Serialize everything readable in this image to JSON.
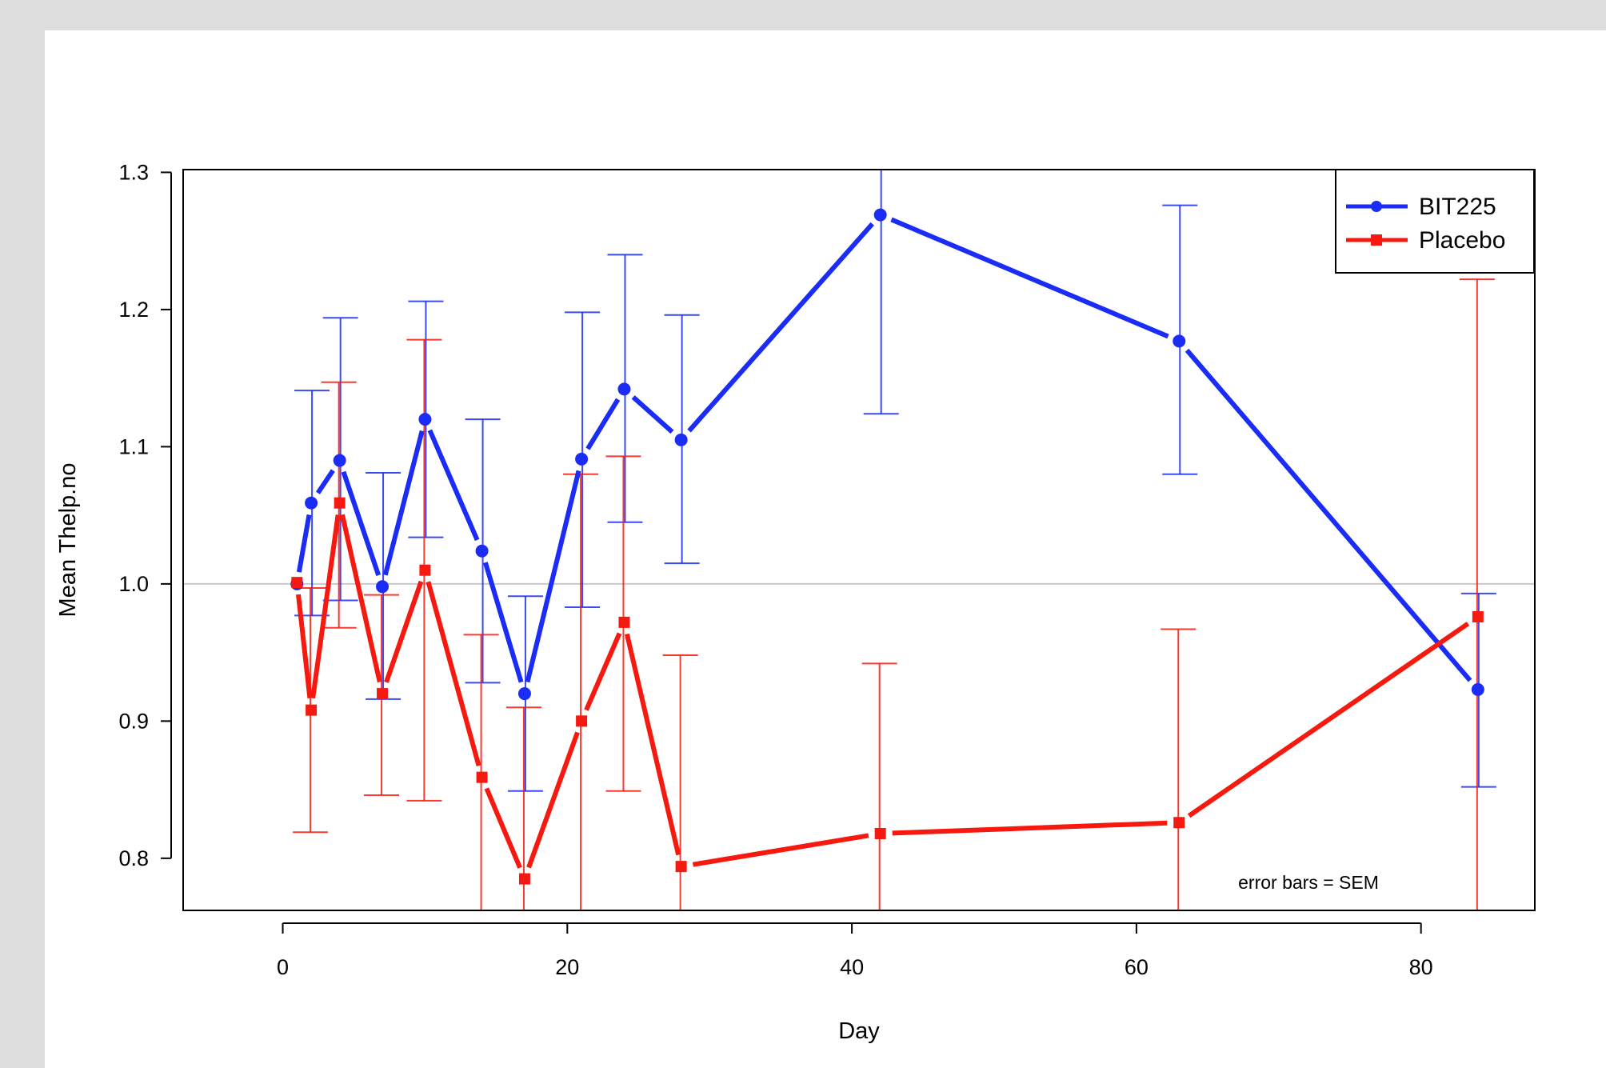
{
  "chart_data": {
    "type": "line",
    "xlabel": "Day",
    "ylabel": "Mean Thelp.no",
    "xlim": [
      -7,
      88
    ],
    "ylim": [
      0.762,
      1.302
    ],
    "xticks": [
      0,
      20,
      40,
      60,
      80
    ],
    "yticks": [
      0.8,
      0.9,
      1.0,
      1.1,
      1.2,
      1.3
    ],
    "ytick_labels": [
      "0.8",
      "0.9",
      "1.0",
      "1.1",
      "1.2",
      "1.3"
    ],
    "reference_line": 1.0,
    "legend_position": "top-right",
    "annotation": "error bars = SEM",
    "series": [
      {
        "name": "BIT225",
        "color": "#1a2cf5",
        "marker": "circle",
        "x": [
          1,
          2,
          4,
          7,
          10,
          14,
          17,
          21,
          24,
          28,
          42,
          63,
          84
        ],
        "y": [
          1.0,
          1.059,
          1.09,
          0.998,
          1.12,
          1.024,
          0.92,
          1.091,
          1.142,
          1.105,
          1.269,
          1.177,
          0.923
        ],
        "err_low": [
          null,
          0.977,
          0.988,
          0.916,
          1.034,
          0.928,
          0.849,
          0.983,
          1.045,
          1.015,
          1.124,
          1.08,
          0.852
        ],
        "err_high": [
          null,
          1.141,
          1.194,
          1.081,
          1.206,
          1.12,
          0.991,
          1.198,
          1.24,
          1.196,
          1.31,
          1.276,
          0.993
        ]
      },
      {
        "name": "Placebo",
        "color": "#f5190f",
        "marker": "square",
        "x": [
          1,
          2,
          4,
          7,
          10,
          14,
          17,
          21,
          24,
          28,
          42,
          63,
          84
        ],
        "y": [
          1.001,
          0.908,
          1.059,
          0.92,
          1.01,
          0.859,
          0.785,
          0.9,
          0.972,
          0.794,
          0.818,
          0.826,
          0.976
        ],
        "err_low": [
          null,
          0.819,
          0.968,
          0.846,
          0.842,
          0.76,
          0.76,
          0.76,
          0.849,
          0.76,
          0.76,
          0.76,
          0.76
        ],
        "err_high": [
          null,
          0.997,
          1.147,
          0.992,
          1.178,
          0.963,
          0.91,
          1.08,
          1.093,
          0.948,
          0.942,
          0.967,
          1.222
        ]
      }
    ]
  }
}
